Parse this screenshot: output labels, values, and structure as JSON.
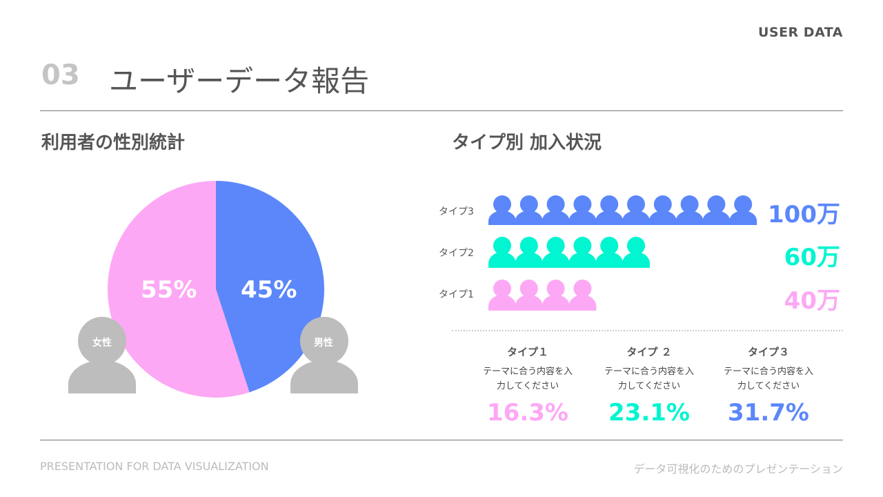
{
  "header": {
    "tag": "USER DATA",
    "number": "03",
    "title": "ユーザーデータ報告"
  },
  "left": {
    "title": "利用者の性別統計",
    "chart_data": {
      "type": "pie",
      "slices": [
        {
          "label": "男性",
          "value": 45,
          "text": "45%",
          "color": "#5b87fb"
        },
        {
          "label": "女性",
          "value": 55,
          "text": "55%",
          "color": "#fda8f5"
        }
      ]
    },
    "female_label": "女性",
    "male_label": "男性"
  },
  "right": {
    "title": "タイプ別 加入状況",
    "chart_data": {
      "type": "pictograph",
      "rows": [
        {
          "label": "タイプ3",
          "icons": 10,
          "value_text": "100万",
          "color": "#5b87fb"
        },
        {
          "label": "タイプ2",
          "icons": 6,
          "value_text": "60万",
          "color": "#00f5d0"
        },
        {
          "label": "タイプ1",
          "icons": 4,
          "value_text": "40万",
          "color": "#fda8f5"
        }
      ]
    },
    "stats": [
      {
        "heading": "タイプ１",
        "desc1": "テーマに合う内容を入",
        "desc2": "力してください",
        "percent": "16.3%",
        "color": "#fda8f5"
      },
      {
        "heading": "タイプ ２",
        "desc1": "テーマに合う内容を入",
        "desc2": "力してください",
        "percent": "23.1%",
        "color": "#00f5d0"
      },
      {
        "heading": "タイプ３",
        "desc1": "テーマに合う内容を入",
        "desc2": "力してください",
        "percent": "31.7%",
        "color": "#5b87fb"
      }
    ]
  },
  "footer": {
    "left": "PRESENTATION FOR DATA VISUALIZATION",
    "right": "データ可視化のためのプレゼンテーション"
  },
  "colors": {
    "person_gray": "#bdbdbd"
  }
}
